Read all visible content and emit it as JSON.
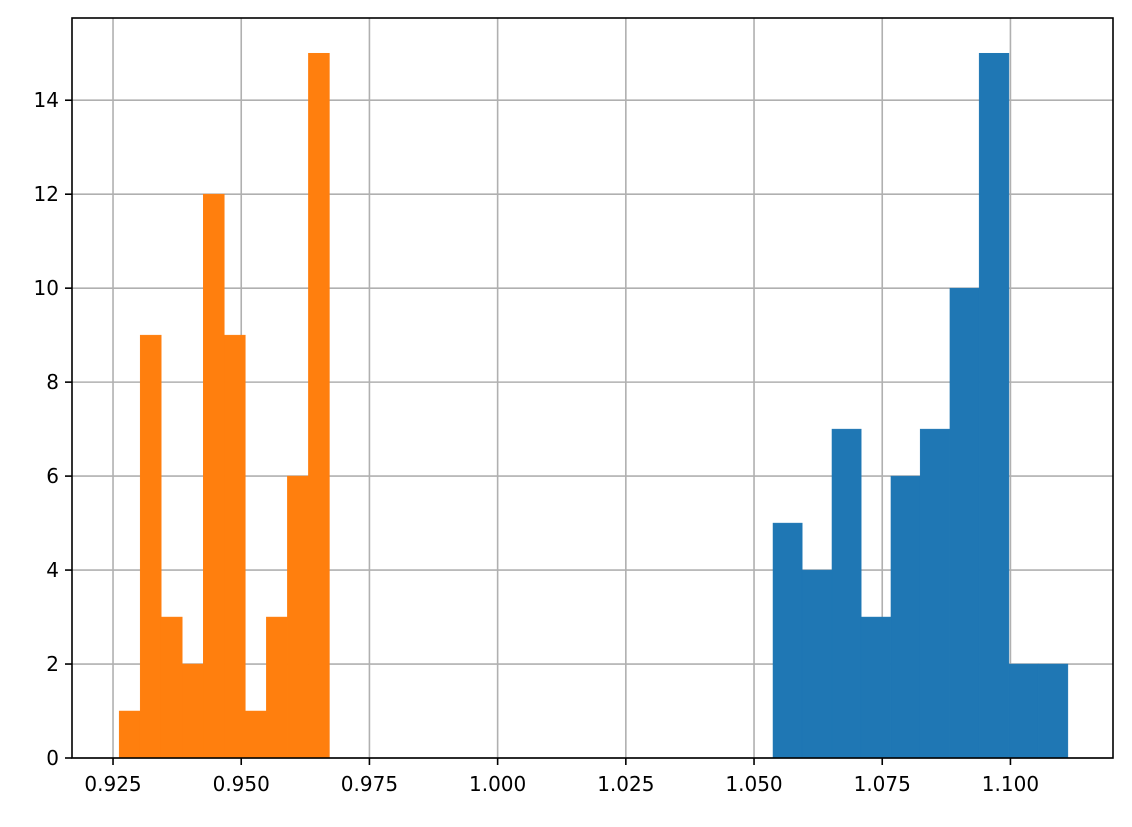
{
  "chart_data": {
    "type": "histogram",
    "title": "",
    "xlabel": "",
    "ylabel": "",
    "xlim": [
      0.917,
      1.12
    ],
    "ylim": [
      0,
      15.75
    ],
    "grid": true,
    "legend": "none",
    "x_ticks": [
      {
        "value": 0.925,
        "label": "0.925"
      },
      {
        "value": 0.95,
        "label": "0.950"
      },
      {
        "value": 0.975,
        "label": "0.975"
      },
      {
        "value": 1.0,
        "label": "1.000"
      },
      {
        "value": 1.025,
        "label": "1.025"
      },
      {
        "value": 1.05,
        "label": "1.050"
      },
      {
        "value": 1.075,
        "label": "1.075"
      },
      {
        "value": 1.1,
        "label": "1.100"
      }
    ],
    "y_ticks": [
      {
        "value": 0,
        "label": "0"
      },
      {
        "value": 2,
        "label": "2"
      },
      {
        "value": 4,
        "label": "4"
      },
      {
        "value": 6,
        "label": "6"
      },
      {
        "value": 8,
        "label": "8"
      },
      {
        "value": 10,
        "label": "10"
      },
      {
        "value": 12,
        "label": "12"
      },
      {
        "value": 14,
        "label": "14"
      }
    ],
    "series": [
      {
        "color": "#1f77b4",
        "bin_edges": [
          1.0537,
          1.0594,
          1.0652,
          1.0709,
          1.0767,
          1.0824,
          1.0882,
          1.0939,
          1.0997,
          1.1054,
          1.1112
        ],
        "counts": [
          5,
          4,
          7,
          3,
          6,
          7,
          10,
          15,
          2,
          2
        ]
      },
      {
        "color": "#ff7f0e",
        "bin_edges": [
          0.9262,
          0.9303,
          0.9344,
          0.9385,
          0.9426,
          0.9467,
          0.9508,
          0.9549,
          0.959,
          0.9631,
          0.9672
        ],
        "counts": [
          1,
          9,
          3,
          2,
          12,
          9,
          1,
          3,
          6,
          15
        ]
      }
    ]
  }
}
